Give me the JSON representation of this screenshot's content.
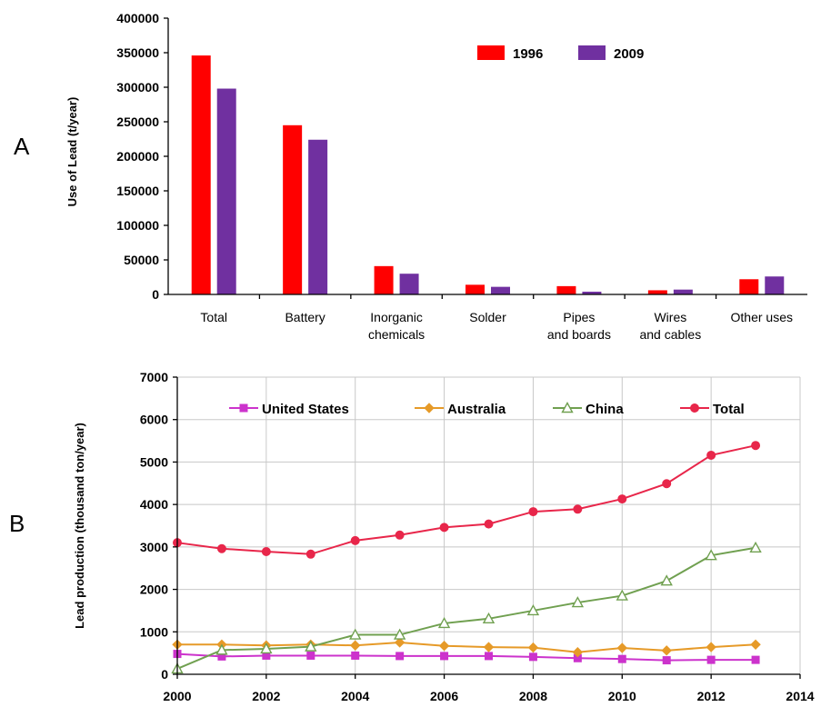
{
  "panels": {
    "a": "A",
    "b": "B"
  },
  "chart_data": [
    {
      "type": "bar",
      "title": "",
      "xlabel": "",
      "ylabel": "Use of Lead (t/year)",
      "ylim": [
        0,
        400000
      ],
      "yticks": [
        0,
        50000,
        100000,
        150000,
        200000,
        250000,
        300000,
        350000,
        400000
      ],
      "categories": [
        [
          "Total"
        ],
        [
          "Battery"
        ],
        [
          "Inorganic",
          "chemicals"
        ],
        [
          "Solder"
        ],
        [
          "Pipes",
          "and boards"
        ],
        [
          "Wires",
          "and cables"
        ],
        [
          "Other uses"
        ]
      ],
      "series": [
        {
          "name": "1996",
          "color": "#ff0000",
          "values": [
            346000,
            245000,
            41000,
            14000,
            12000,
            6000,
            22000
          ]
        },
        {
          "name": "2009",
          "color": "#7030a0",
          "values": [
            298000,
            224000,
            30000,
            11000,
            4000,
            7000,
            26000
          ]
        }
      ],
      "legend": "top-right",
      "grid": false
    },
    {
      "type": "line",
      "title": "",
      "xlabel": "",
      "ylabel": "Lead  production (thousand ton/year)",
      "xlim": [
        2000,
        2014
      ],
      "ylim": [
        0,
        7000
      ],
      "xticks": [
        2000,
        2002,
        2004,
        2006,
        2008,
        2010,
        2012,
        2014
      ],
      "yticks": [
        0,
        1000,
        2000,
        3000,
        4000,
        5000,
        6000,
        7000
      ],
      "x": [
        2000,
        2001,
        2002,
        2003,
        2004,
        2005,
        2006,
        2007,
        2008,
        2009,
        2010,
        2011,
        2012,
        2013
      ],
      "series": [
        {
          "name": "United States",
          "color": "#cc33cc",
          "marker": "square",
          "values": [
            480,
            420,
            440,
            440,
            440,
            430,
            430,
            430,
            410,
            380,
            360,
            330,
            340,
            340
          ]
        },
        {
          "name": "Australia",
          "color": "#e69a28",
          "marker": "diamond",
          "values": [
            700,
            700,
            680,
            700,
            680,
            750,
            670,
            640,
            630,
            520,
            620,
            560,
            640,
            700
          ]
        },
        {
          "name": "China",
          "color": "#70a050",
          "marker": "triangle",
          "values": [
            130,
            570,
            600,
            650,
            930,
            930,
            1200,
            1310,
            1500,
            1690,
            1850,
            2200,
            2800,
            2980
          ]
        },
        {
          "name": "Total",
          "color": "#e8264a",
          "marker": "circle",
          "values": [
            3100,
            2960,
            2890,
            2830,
            3150,
            3280,
            3460,
            3540,
            3830,
            3890,
            4130,
            4490,
            5160,
            5390
          ]
        }
      ],
      "legend": "top",
      "grid": true
    }
  ]
}
